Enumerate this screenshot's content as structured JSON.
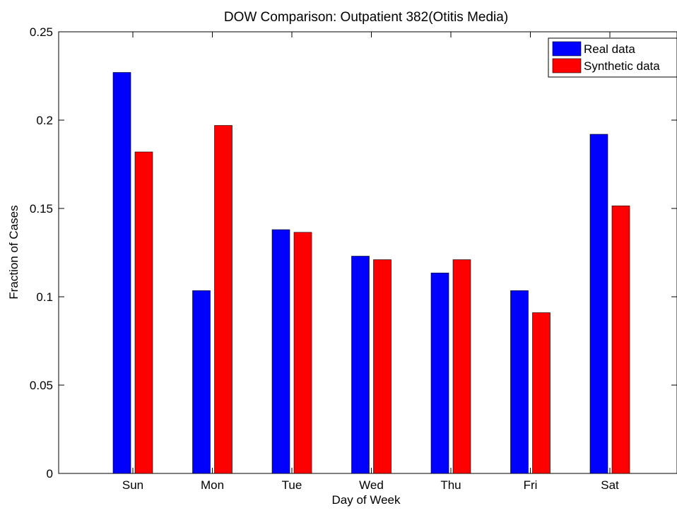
{
  "chart_data": {
    "type": "bar",
    "title": "DOW Comparison: Outpatient 382(Otitis Media)",
    "xlabel": "Day of Week",
    "ylabel": "Fraction of Cases",
    "categories": [
      "Sun",
      "Mon",
      "Tue",
      "Wed",
      "Thu",
      "Fri",
      "Sat"
    ],
    "ylim": [
      0,
      0.25
    ],
    "yticks": [
      0,
      0.05,
      0.1,
      0.15,
      0.2,
      0.25
    ],
    "ytick_labels": [
      "0",
      "0.05",
      "0.1",
      "0.15",
      "0.2",
      "0.25"
    ],
    "grid": false,
    "legend_position": "top-right",
    "series": [
      {
        "name": "Real data",
        "color": "#0000ff",
        "values": [
          0.227,
          0.1035,
          0.138,
          0.123,
          0.1135,
          0.1035,
          0.192
        ]
      },
      {
        "name": "Synthetic data",
        "color": "#ff0000",
        "values": [
          0.182,
          0.197,
          0.1365,
          0.121,
          0.121,
          0.091,
          0.1515
        ]
      }
    ]
  }
}
